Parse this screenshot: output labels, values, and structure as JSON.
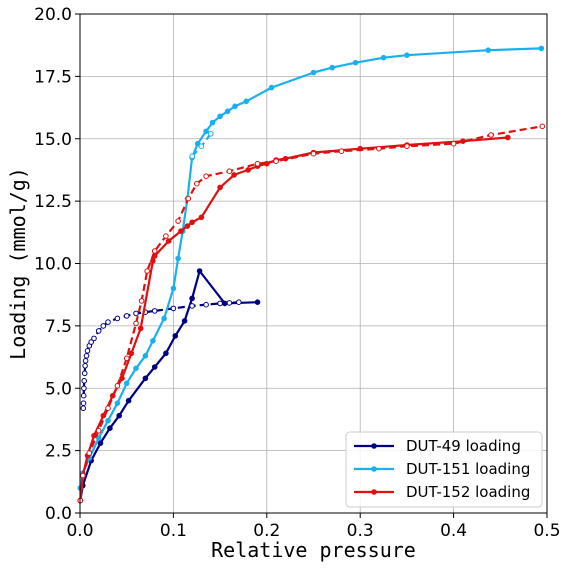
{
  "chart_data": {
    "type": "line",
    "title": "",
    "xlabel": "Relative pressure",
    "ylabel": "Loading (mmol/g)",
    "xlim": [
      0.0,
      0.5
    ],
    "ylim": [
      0.0,
      20.0
    ],
    "xticks": [
      "0.0",
      "0.1",
      "0.2",
      "0.3",
      "0.4",
      "0.5"
    ],
    "yticks": [
      "0.0",
      "2.5",
      "5.0",
      "7.5",
      "10.0",
      "12.5",
      "15.0",
      "17.5",
      "20.0"
    ],
    "grid": true,
    "legend_position": "bottom-right",
    "series": [
      {
        "name": "DUT-49 loading",
        "color": "#000080",
        "style": "solid",
        "marker": "filled-circle",
        "x": [
          0.0003,
          0.003,
          0.012,
          0.022,
          0.032,
          0.042,
          0.052,
          0.07,
          0.08,
          0.092,
          0.102,
          0.112,
          0.12,
          0.128,
          0.155,
          0.19
        ],
        "y": [
          0.5,
          1.1,
          2.1,
          2.8,
          3.4,
          3.9,
          4.5,
          5.4,
          5.85,
          6.4,
          7.1,
          7.7,
          8.6,
          9.7,
          8.4,
          8.45
        ]
      },
      {
        "name": "",
        "color": "#000080",
        "style": "dashed",
        "marker": "open-circle",
        "x": [
          0.0035,
          0.0037,
          0.004,
          0.0042,
          0.0045,
          0.005,
          0.0055,
          0.006,
          0.007,
          0.008,
          0.01,
          0.012,
          0.015,
          0.02,
          0.025,
          0.03,
          0.04,
          0.05,
          0.06,
          0.07,
          0.08,
          0.1,
          0.12,
          0.135,
          0.15,
          0.16,
          0.17
        ],
        "y": [
          4.2,
          4.4,
          4.7,
          5.0,
          5.3,
          5.6,
          5.9,
          6.1,
          6.3,
          6.5,
          6.7,
          6.85,
          7.0,
          7.3,
          7.5,
          7.65,
          7.8,
          7.9,
          8.0,
          8.05,
          8.1,
          8.2,
          8.3,
          8.35,
          8.4,
          8.42,
          8.45
        ]
      },
      {
        "name": "DUT-151 loading",
        "color": "#1ab0f0",
        "style": "solid",
        "marker": "filled-circle",
        "x": [
          0.0003,
          0.003,
          0.01,
          0.02,
          0.03,
          0.04,
          0.05,
          0.06,
          0.07,
          0.078,
          0.09,
          0.1,
          0.105,
          0.11,
          0.115,
          0.12,
          0.126,
          0.135,
          0.142,
          0.15,
          0.158,
          0.166,
          0.178,
          0.205,
          0.25,
          0.27,
          0.295,
          0.325,
          0.35,
          0.437,
          0.494
        ],
        "y": [
          1.0,
          1.6,
          2.2,
          3.0,
          3.7,
          4.4,
          5.2,
          5.8,
          6.3,
          6.9,
          7.8,
          9.0,
          10.2,
          11.3,
          12.6,
          14.25,
          14.8,
          15.3,
          15.65,
          15.9,
          16.1,
          16.3,
          16.5,
          17.05,
          17.65,
          17.85,
          18.05,
          18.25,
          18.35,
          18.55,
          18.62
        ]
      },
      {
        "name": "",
        "color": "#1ab0f0",
        "style": "dashed",
        "marker": "open-circle",
        "x": [
          0.12,
          0.13,
          0.14
        ],
        "y": [
          14.3,
          14.7,
          15.2
        ]
      },
      {
        "name": "DUT-152 loading",
        "color": "#e01010",
        "style": "solid",
        "marker": "filled-circle",
        "x": [
          0.0003,
          0.003,
          0.008,
          0.015,
          0.025,
          0.035,
          0.045,
          0.055,
          0.065,
          0.078,
          0.08,
          0.095,
          0.108,
          0.115,
          0.12,
          0.13,
          0.15,
          0.165,
          0.18,
          0.19,
          0.2,
          0.21,
          0.22,
          0.25,
          0.3,
          0.35,
          0.41,
          0.458
        ],
        "y": [
          0.5,
          1.5,
          2.3,
          3.1,
          3.9,
          4.7,
          5.4,
          6.4,
          7.4,
          10.1,
          10.3,
          10.9,
          11.3,
          11.5,
          11.65,
          11.85,
          13.05,
          13.55,
          13.75,
          13.9,
          14.0,
          14.15,
          14.2,
          14.45,
          14.6,
          14.75,
          14.9,
          15.05
        ]
      },
      {
        "name": "",
        "color": "#e01010",
        "style": "dashed",
        "marker": "open-circle",
        "x": [
          0.0003,
          0.003,
          0.01,
          0.02,
          0.03,
          0.04,
          0.05,
          0.06,
          0.066,
          0.072,
          0.08,
          0.092,
          0.105,
          0.116,
          0.125,
          0.135,
          0.16,
          0.19,
          0.21,
          0.25,
          0.28,
          0.32,
          0.35,
          0.4,
          0.44,
          0.495
        ],
        "y": [
          0.5,
          1.5,
          2.4,
          3.3,
          4.2,
          5.1,
          6.2,
          7.6,
          8.5,
          9.7,
          10.5,
          11.1,
          11.7,
          12.6,
          13.2,
          13.5,
          13.7,
          14.0,
          14.1,
          14.4,
          14.5,
          14.6,
          14.7,
          14.8,
          15.15,
          15.5
        ]
      }
    ]
  }
}
